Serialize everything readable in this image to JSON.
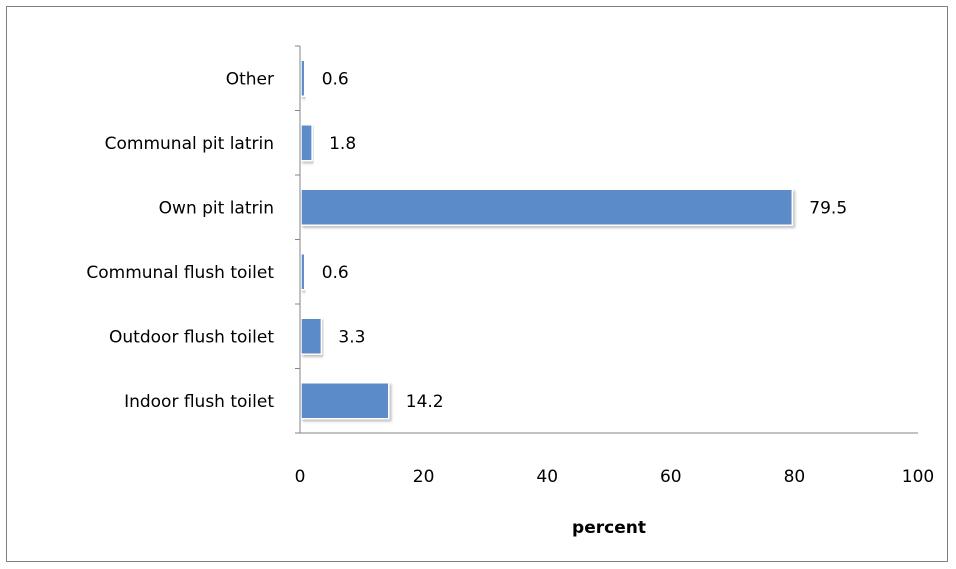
{
  "chart_data": {
    "type": "bar",
    "orientation": "horizontal",
    "categories": [
      "Other",
      "Communal pit latrin",
      "Own pit latrin",
      "Communal flush toilet",
      "Outdoor flush toilet",
      "Indoor flush toilet"
    ],
    "values": [
      0.6,
      1.8,
      79.5,
      0.6,
      3.3,
      14.2
    ],
    "data_labels": [
      "0.6",
      "1.8",
      "79.5",
      "0.6",
      "3.3",
      "14.2"
    ],
    "xlabel": "percent",
    "ylabel": "",
    "xlim": [
      0,
      100
    ],
    "xticks": [
      "0",
      "20",
      "40",
      "60",
      "80",
      "100"
    ],
    "grid": false,
    "legend": "none",
    "bar_color": "#5b8bc9",
    "bar_edge_color": "#4a78b4"
  }
}
